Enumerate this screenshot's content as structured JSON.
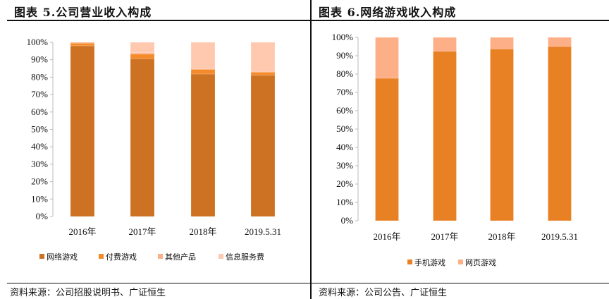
{
  "left": {
    "title": "图表 5.公司营业收入构成",
    "source": "资料来源：公司招股说明书、广证恒生"
  },
  "right": {
    "title": "图表 6.网络游戏收入构成",
    "source": "资料来源：公司公告、广证恒生"
  },
  "chart_data": [
    {
      "type": "bar",
      "stacked": true,
      "title": "图表 5.公司营业收入构成",
      "categories": [
        "2016年",
        "2017年",
        "2018年",
        "2019.5.31"
      ],
      "y_ticks": [
        "0%",
        "10%",
        "20%",
        "30%",
        "40%",
        "50%",
        "60%",
        "70%",
        "80%",
        "90%",
        "100%"
      ],
      "ylim": [
        0,
        100
      ],
      "legend_position": "bottom",
      "series": [
        {
          "name": "网络游戏",
          "color": "#CD7122",
          "values": [
            98.0,
            90.6,
            81.8,
            81.1
          ]
        },
        {
          "name": "付费游戏",
          "color": "#F58A2A",
          "values": [
            1.5,
            2.6,
            2.7,
            1.8
          ]
        },
        {
          "name": "其他产品",
          "color": "#FBB089",
          "values": [
            0.5,
            0.8,
            0.1,
            0.1
          ]
        },
        {
          "name": "信息服务费",
          "color": "#FFC9B0",
          "values": [
            0.0,
            6.0,
            15.4,
            17.0
          ]
        }
      ]
    },
    {
      "type": "bar",
      "stacked": true,
      "title": "图表 6.网络游戏收入构成",
      "categories": [
        "2016年",
        "2017年",
        "2018年",
        "2019.5.31"
      ],
      "y_ticks": [
        "0%",
        "10%",
        "20%",
        "30%",
        "40%",
        "50%",
        "60%",
        "70%",
        "80%",
        "90%",
        "100%"
      ],
      "ylim": [
        0,
        100
      ],
      "legend_position": "bottom",
      "series": [
        {
          "name": "手机游戏",
          "color": "#E88024",
          "values": [
            77.7,
            92.4,
            93.7,
            95.0
          ]
        },
        {
          "name": "网页游戏",
          "color": "#FDAF87",
          "values": [
            22.3,
            7.6,
            6.3,
            5.0
          ]
        }
      ]
    }
  ]
}
